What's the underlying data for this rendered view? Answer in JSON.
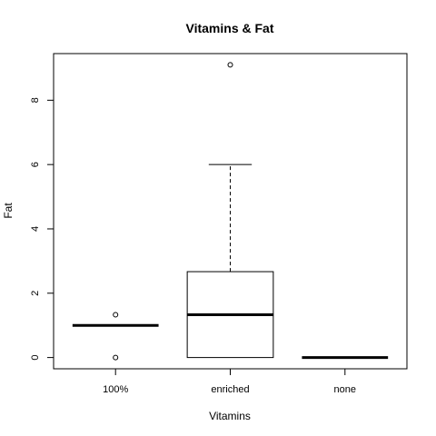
{
  "chart_data": {
    "type": "boxplot",
    "title": "Vitamins & Fat",
    "xlabel": "Vitamins",
    "ylabel": "Fat",
    "ylim": [
      -0.35,
      9.45
    ],
    "yticks": [
      0,
      2,
      4,
      6,
      8
    ],
    "categories": [
      "100%",
      "enriched",
      "none"
    ],
    "boxes": [
      {
        "category": "100%",
        "min": 1,
        "q1": 1,
        "median": 1,
        "q3": 1,
        "max": 1,
        "outliers": [
          1.33,
          0
        ]
      },
      {
        "category": "enriched",
        "min": 0,
        "q1": 0,
        "median": 1.33,
        "q3": 2.67,
        "max": 6,
        "outliers": [
          9.1
        ]
      },
      {
        "category": "none",
        "min": 0,
        "q1": 0,
        "median": 0,
        "q3": 0,
        "max": 0,
        "outliers": []
      }
    ],
    "grid": false,
    "legend": "none"
  }
}
